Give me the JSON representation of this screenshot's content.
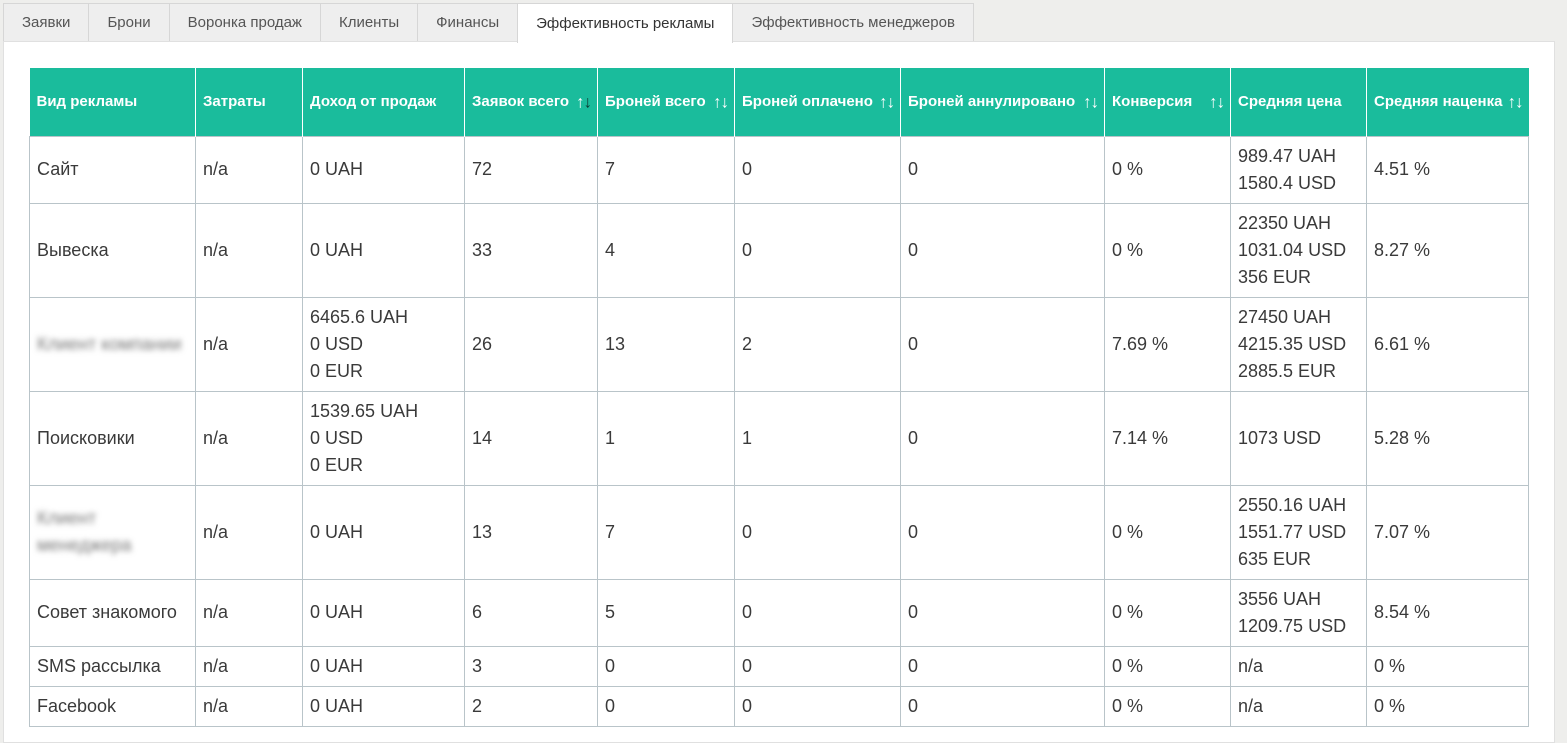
{
  "tabs": [
    {
      "label": "Заявки",
      "active": false
    },
    {
      "label": "Брони",
      "active": false
    },
    {
      "label": "Воронка продаж",
      "active": false
    },
    {
      "label": "Клиенты",
      "active": false
    },
    {
      "label": "Финансы",
      "active": false
    },
    {
      "label": "Эффективность рекламы",
      "active": true
    },
    {
      "label": "Эффективность менеджеров",
      "active": false
    }
  ],
  "table": {
    "columns": [
      {
        "label": "Вид рекламы",
        "sortable": false
      },
      {
        "label": "Затраты",
        "sortable": false
      },
      {
        "label": "Доход от продаж",
        "sortable": false
      },
      {
        "label": "Заявок всего",
        "sortable": true,
        "sort_icon": "↑↓",
        "active_desc": true
      },
      {
        "label": "Броней всего",
        "sortable": true,
        "sort_icon": "↑↓"
      },
      {
        "label": "Броней оплачено",
        "sortable": true,
        "sort_icon": "↑↓"
      },
      {
        "label": "Броней аннулировано",
        "sortable": true,
        "sort_icon": "↑↓"
      },
      {
        "label": "Конверсия",
        "sortable": true,
        "sort_icon": "↑↓"
      },
      {
        "label": "Средняя цена",
        "sortable": false
      },
      {
        "label": "Средняя наценка",
        "sortable": true,
        "sort_icon": "↑↓"
      }
    ],
    "rows": [
      {
        "name": "Сайт",
        "blurred": false,
        "cost": "n/a",
        "income": [
          "0 UAH"
        ],
        "requests": "72",
        "bookings": "7",
        "paid": "0",
        "cancelled": "0",
        "conversion": "0 %",
        "avg_price": [
          "989.47 UAH",
          "1580.4 USD"
        ],
        "markup": "4.51 %"
      },
      {
        "name": "Вывеска",
        "blurred": false,
        "cost": "n/a",
        "income": [
          "0 UAH"
        ],
        "requests": "33",
        "bookings": "4",
        "paid": "0",
        "cancelled": "0",
        "conversion": "0 %",
        "avg_price": [
          "22350 UAH",
          "1031.04 USD",
          "356 EUR"
        ],
        "markup": "8.27 %"
      },
      {
        "name": "Клиент компании",
        "blurred": true,
        "cost": "n/a",
        "income": [
          "6465.6 UAH",
          "0 USD",
          "0 EUR"
        ],
        "requests": "26",
        "bookings": "13",
        "paid": "2",
        "cancelled": "0",
        "conversion": "7.69 %",
        "avg_price": [
          "27450 UAH",
          "4215.35 USD",
          "2885.5 EUR"
        ],
        "markup": "6.61 %"
      },
      {
        "name": "Поисковики",
        "blurred": false,
        "cost": "n/a",
        "income": [
          "1539.65 UAH",
          "0 USD",
          "0 EUR"
        ],
        "requests": "14",
        "bookings": "1",
        "paid": "1",
        "cancelled": "0",
        "conversion": "7.14 %",
        "avg_price": [
          "1073 USD"
        ],
        "markup": "5.28 %"
      },
      {
        "name": "Клиент менеджера",
        "blurred": true,
        "cost": "n/a",
        "income": [
          "0 UAH"
        ],
        "requests": "13",
        "bookings": "7",
        "paid": "0",
        "cancelled": "0",
        "conversion": "0 %",
        "avg_price": [
          "2550.16 UAH",
          "1551.77 USD",
          "635 EUR"
        ],
        "markup": "7.07 %"
      },
      {
        "name": "Совет знакомого",
        "blurred": false,
        "cost": "n/a",
        "income": [
          "0 UAH"
        ],
        "requests": "6",
        "bookings": "5",
        "paid": "0",
        "cancelled": "0",
        "conversion": "0 %",
        "avg_price": [
          "3556 UAH",
          "1209.75 USD"
        ],
        "markup": "8.54 %"
      },
      {
        "name": "SMS рассылка",
        "blurred": false,
        "cost": "n/a",
        "income": [
          "0 UAH"
        ],
        "requests": "3",
        "bookings": "0",
        "paid": "0",
        "cancelled": "0",
        "conversion": "0 %",
        "avg_price": [
          "n/a"
        ],
        "markup": "0 %"
      },
      {
        "name": "Facebook",
        "blurred": false,
        "cost": "n/a",
        "income": [
          "0 UAH"
        ],
        "requests": "2",
        "bookings": "0",
        "paid": "0",
        "cancelled": "0",
        "conversion": "0 %",
        "avg_price": [
          "n/a"
        ],
        "markup": "0 %"
      }
    ]
  },
  "colors": {
    "header_bg": "#1abc9c",
    "header_text": "#ffffff",
    "grid": "#b9c4c9"
  }
}
